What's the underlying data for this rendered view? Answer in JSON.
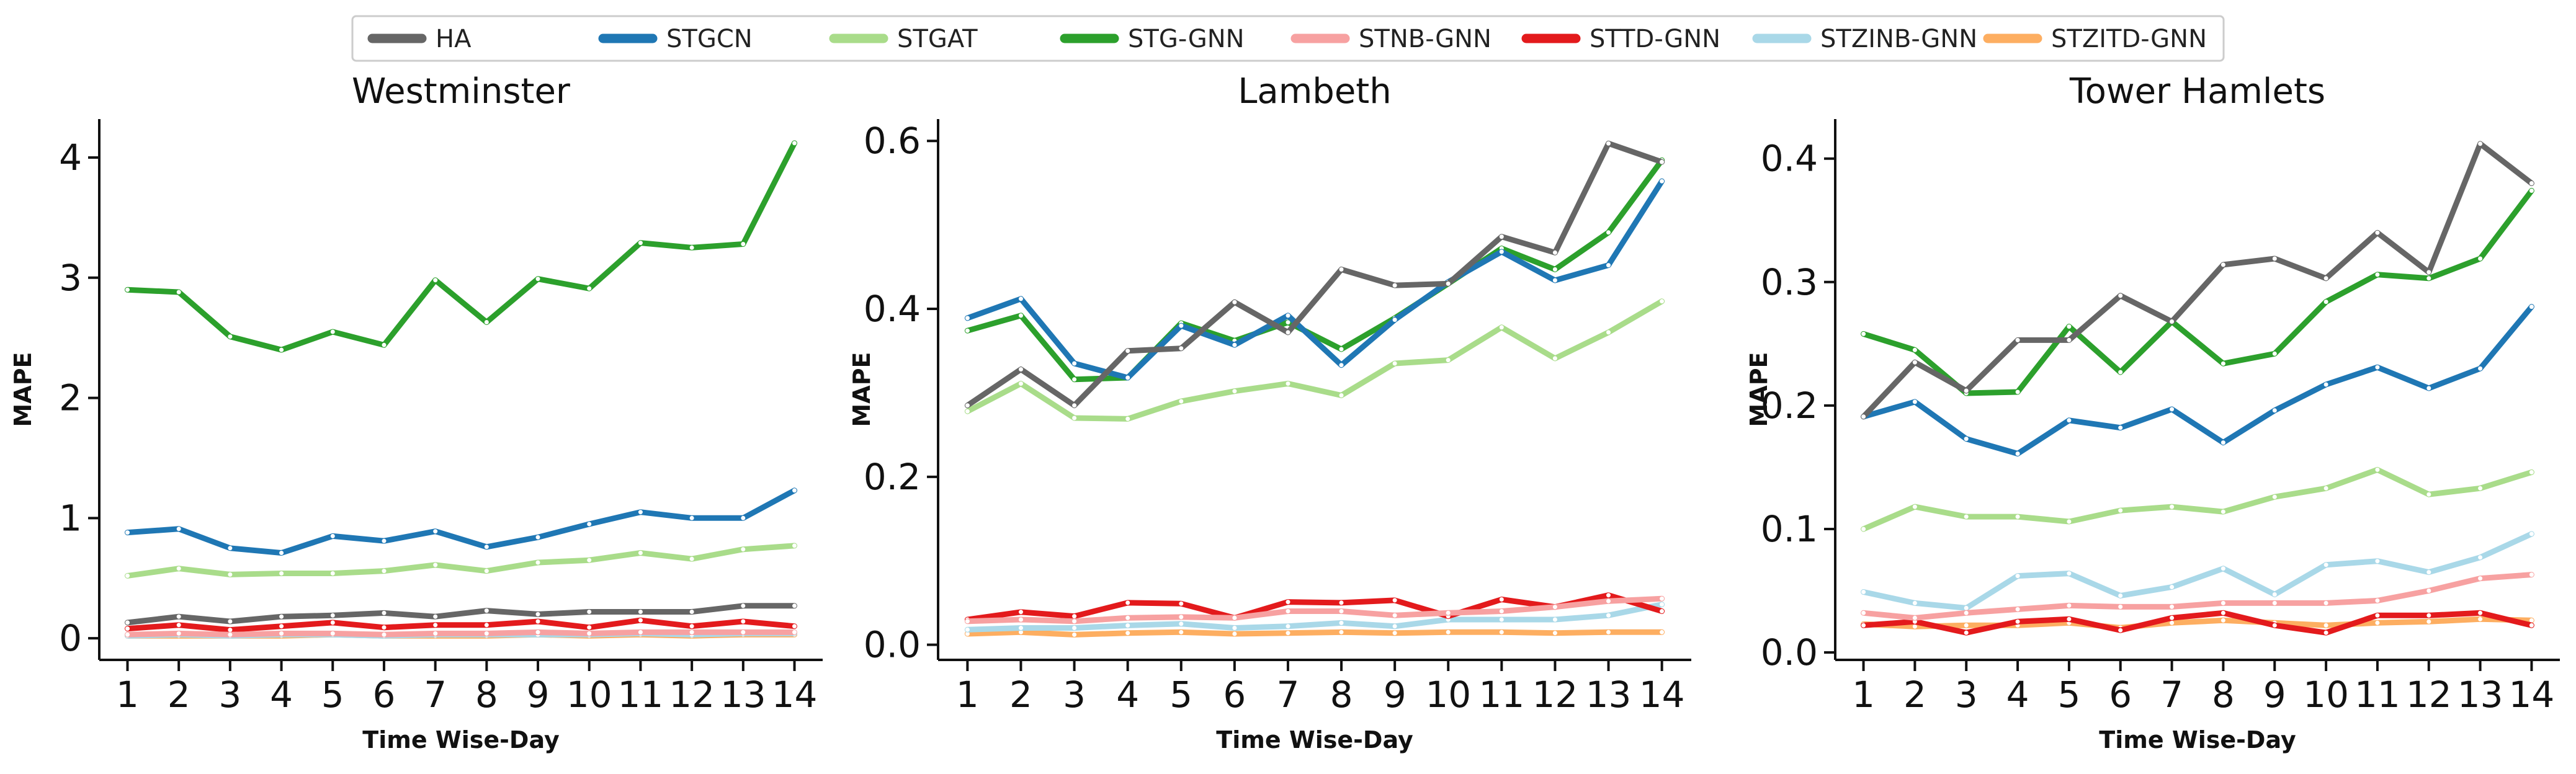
{
  "chart_data": [
    {
      "type": "line",
      "title": "Westminster",
      "xlabel": "Time Wise-Day",
      "ylabel": "MAPE",
      "x": [
        1,
        2,
        3,
        4,
        5,
        6,
        7,
        8,
        9,
        10,
        11,
        12,
        13,
        14
      ],
      "ylim": [
        -0.18,
        4.32
      ],
      "yticks": [
        0,
        1,
        2,
        3,
        4
      ],
      "ytick_labels": [
        "0",
        "1",
        "2",
        "3",
        "4"
      ],
      "series": [
        {
          "name": "HA",
          "values": [
            0.13,
            0.18,
            0.14,
            0.18,
            0.19,
            0.21,
            0.18,
            0.23,
            0.2,
            0.22,
            0.22,
            0.22,
            0.27,
            0.27
          ]
        },
        {
          "name": "STGCN",
          "values": [
            0.88,
            0.91,
            0.75,
            0.71,
            0.85,
            0.81,
            0.89,
            0.76,
            0.84,
            0.95,
            1.05,
            1.0,
            1.0,
            1.23
          ]
        },
        {
          "name": "STGAT",
          "values": [
            0.52,
            0.58,
            0.53,
            0.54,
            0.54,
            0.56,
            0.61,
            0.56,
            0.63,
            0.65,
            0.71,
            0.66,
            0.74,
            0.77
          ]
        },
        {
          "name": "STG-GNN",
          "values": [
            2.9,
            2.88,
            2.51,
            2.4,
            2.55,
            2.44,
            2.98,
            2.63,
            2.99,
            2.91,
            3.29,
            3.25,
            3.28,
            4.12
          ]
        },
        {
          "name": "STNB-GNN",
          "values": [
            0.03,
            0.04,
            0.03,
            0.04,
            0.04,
            0.03,
            0.04,
            0.04,
            0.05,
            0.04,
            0.05,
            0.05,
            0.05,
            0.05
          ]
        },
        {
          "name": "STTD-GNN",
          "values": [
            0.08,
            0.11,
            0.07,
            0.1,
            0.13,
            0.09,
            0.11,
            0.11,
            0.14,
            0.09,
            0.15,
            0.1,
            0.14,
            0.1
          ]
        },
        {
          "name": "STZINB-GNN",
          "values": [
            0.02,
            0.03,
            0.02,
            0.03,
            0.03,
            0.02,
            0.03,
            0.03,
            0.03,
            0.03,
            0.04,
            0.03,
            0.04,
            0.04
          ]
        },
        {
          "name": "STZITD-GNN",
          "values": [
            0.02,
            0.02,
            0.02,
            0.02,
            0.03,
            0.02,
            0.02,
            0.02,
            0.03,
            0.02,
            0.03,
            0.02,
            0.03,
            0.03
          ]
        }
      ]
    },
    {
      "type": "line",
      "title": "Lambeth",
      "xlabel": "Time Wise-Day",
      "ylabel": "MAPE",
      "x": [
        1,
        2,
        3,
        4,
        5,
        6,
        7,
        8,
        9,
        10,
        11,
        12,
        13,
        14
      ],
      "ylim": [
        -0.018,
        0.626
      ],
      "yticks": [
        0.0,
        0.2,
        0.4,
        0.6
      ],
      "ytick_labels": [
        "0.0",
        "0.2",
        "0.4",
        "0.6"
      ],
      "series": [
        {
          "name": "HA",
          "values": [
            0.285,
            0.328,
            0.285,
            0.35,
            0.353,
            0.408,
            0.372,
            0.447,
            0.428,
            0.43,
            0.486,
            0.467,
            0.597,
            0.575
          ]
        },
        {
          "name": "STGCN",
          "values": [
            0.389,
            0.412,
            0.335,
            0.318,
            0.38,
            0.357,
            0.392,
            0.333,
            0.387,
            0.432,
            0.468,
            0.434,
            0.452,
            0.552
          ]
        },
        {
          "name": "STGAT",
          "values": [
            0.278,
            0.311,
            0.27,
            0.269,
            0.29,
            0.302,
            0.311,
            0.297,
            0.335,
            0.339,
            0.378,
            0.341,
            0.372,
            0.409
          ]
        },
        {
          "name": "STG-GNN",
          "values": [
            0.374,
            0.392,
            0.316,
            0.318,
            0.383,
            0.362,
            0.384,
            0.352,
            0.389,
            0.43,
            0.472,
            0.447,
            0.491,
            0.577
          ]
        },
        {
          "name": "STNB-GNN",
          "values": [
            0.028,
            0.03,
            0.028,
            0.032,
            0.033,
            0.032,
            0.04,
            0.04,
            0.035,
            0.038,
            0.04,
            0.045,
            0.052,
            0.055
          ]
        },
        {
          "name": "STTD-GNN",
          "values": [
            0.03,
            0.039,
            0.034,
            0.05,
            0.049,
            0.032,
            0.051,
            0.05,
            0.053,
            0.034,
            0.054,
            0.045,
            0.059,
            0.04
          ]
        },
        {
          "name": "STZINB-GNN",
          "values": [
            0.018,
            0.02,
            0.02,
            0.023,
            0.025,
            0.02,
            0.022,
            0.026,
            0.022,
            0.03,
            0.03,
            0.03,
            0.035,
            0.048
          ]
        },
        {
          "name": "STZITD-GNN",
          "values": [
            0.013,
            0.015,
            0.012,
            0.014,
            0.015,
            0.013,
            0.014,
            0.015,
            0.014,
            0.015,
            0.015,
            0.014,
            0.015,
            0.015
          ]
        }
      ]
    },
    {
      "type": "line",
      "title": "Tower Hamlets",
      "xlabel": "Time Wise-Day",
      "ylabel": "MAPE",
      "x": [
        1,
        2,
        3,
        4,
        5,
        6,
        7,
        8,
        9,
        10,
        11,
        12,
        13,
        14
      ],
      "ylim": [
        -0.006,
        0.432
      ],
      "yticks": [
        0.0,
        0.1,
        0.2,
        0.3,
        0.4
      ],
      "ytick_labels": [
        "0.0",
        "0.1",
        "0.2",
        "0.3",
        "0.4"
      ],
      "series": [
        {
          "name": "HA",
          "values": [
            0.191,
            0.235,
            0.212,
            0.253,
            0.253,
            0.289,
            0.268,
            0.314,
            0.319,
            0.303,
            0.34,
            0.308,
            0.412,
            0.38
          ]
        },
        {
          "name": "STGCN",
          "values": [
            0.191,
            0.203,
            0.173,
            0.161,
            0.188,
            0.182,
            0.197,
            0.17,
            0.196,
            0.217,
            0.231,
            0.214,
            0.23,
            0.28
          ]
        },
        {
          "name": "STGAT",
          "values": [
            0.1,
            0.118,
            0.11,
            0.11,
            0.106,
            0.115,
            0.118,
            0.114,
            0.126,
            0.133,
            0.148,
            0.128,
            0.133,
            0.146
          ]
        },
        {
          "name": "STG-GNN",
          "values": [
            0.258,
            0.245,
            0.21,
            0.211,
            0.264,
            0.227,
            0.268,
            0.234,
            0.242,
            0.284,
            0.306,
            0.303,
            0.319,
            0.374
          ]
        },
        {
          "name": "STNB-GNN",
          "values": [
            0.032,
            0.028,
            0.032,
            0.035,
            0.038,
            0.037,
            0.037,
            0.04,
            0.04,
            0.04,
            0.042,
            0.05,
            0.06,
            0.063
          ]
        },
        {
          "name": "STTD-GNN",
          "values": [
            0.022,
            0.025,
            0.016,
            0.025,
            0.027,
            0.018,
            0.028,
            0.032,
            0.022,
            0.016,
            0.03,
            0.03,
            0.032,
            0.022
          ]
        },
        {
          "name": "STZINB-GNN",
          "values": [
            0.049,
            0.04,
            0.036,
            0.062,
            0.064,
            0.046,
            0.053,
            0.068,
            0.047,
            0.071,
            0.074,
            0.065,
            0.077,
            0.096
          ]
        },
        {
          "name": "STZITD-GNN",
          "values": [
            0.023,
            0.021,
            0.022,
            0.022,
            0.024,
            0.02,
            0.024,
            0.026,
            0.024,
            0.022,
            0.024,
            0.025,
            0.027,
            0.026
          ]
        }
      ]
    }
  ],
  "legend": {
    "placement": "top-center",
    "entries": [
      {
        "name": "HA",
        "color": "#666666"
      },
      {
        "name": "STGCN",
        "color": "#1f77b4"
      },
      {
        "name": "STGAT",
        "color": "#a9dc8a"
      },
      {
        "name": "STG-GNN",
        "color": "#2ca02c"
      },
      {
        "name": "STNB-GNN",
        "color": "#f7a1a1"
      },
      {
        "name": "STTD-GNN",
        "color": "#e31a1c"
      },
      {
        "name": "STZINB-GNN",
        "color": "#a9d8e8"
      },
      {
        "name": "STZITD-GNN",
        "color": "#fdae61"
      }
    ]
  },
  "colors": {
    "HA": "#666666",
    "STGCN": "#1f77b4",
    "STGAT": "#a9dc8a",
    "STG-GNN": "#2ca02c",
    "STNB-GNN": "#f7a1a1",
    "STTD-GNN": "#e31a1c",
    "STZINB-GNN": "#a9d8e8",
    "STZITD-GNN": "#fdae61"
  }
}
